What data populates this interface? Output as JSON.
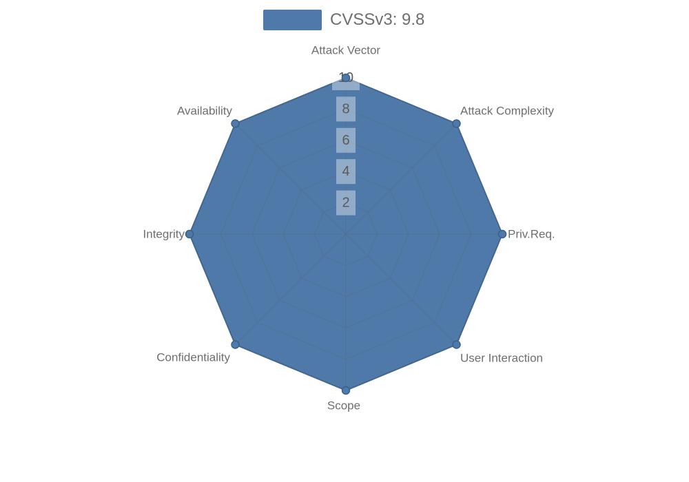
{
  "legend": {
    "label": "CVSSv3: 9.8",
    "swatch_color": "#4e79a8"
  },
  "chart_data": {
    "type": "radar",
    "title": "CVSSv3: 9.8",
    "legend_position": "top-center",
    "indicators": [
      "Attack Vector",
      "Attack Complexity",
      "Priv.Req.",
      "User Interaction",
      "Scope",
      "Confidentiality",
      "Integrity",
      "Availability"
    ],
    "max": 10,
    "min": 0,
    "tick_interval": 2,
    "tick_labels": [
      "2",
      "4",
      "6",
      "8",
      "10"
    ],
    "grid": "polygon-web",
    "series": [
      {
        "name": "CVSSv3: 9.8",
        "values": [
          10,
          10,
          10,
          10,
          10,
          10,
          10,
          10
        ]
      }
    ],
    "colors": {
      "series_fill": "#4e79a8",
      "series_border": "#3f6795",
      "vertex_dot_fill": "#4e79a8",
      "vertex_dot_border": "#3a608c",
      "grid_line": "rgba(100,100,100,0.30)",
      "axis_label": "#6e6e6e",
      "tick_text": "#5a5a5a",
      "tick_box": "rgba(255,255,255,0.38)",
      "background": "#ffffff"
    }
  }
}
